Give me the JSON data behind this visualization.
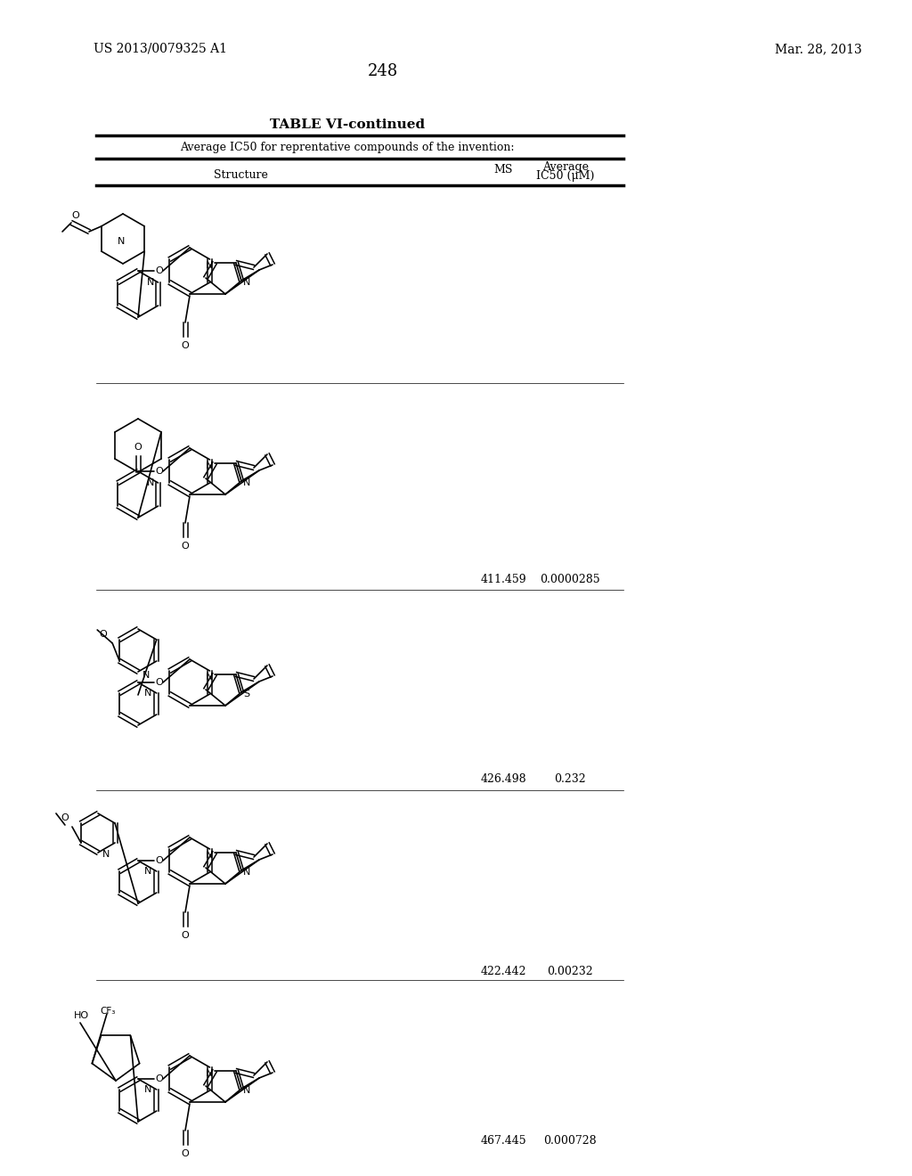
{
  "page_number": "248",
  "left_header": "US 2013/0079325 A1",
  "right_header": "Mar. 28, 2013",
  "table_title": "TABLE VI-continued",
  "table_subtitle": "Average IC50 for reprentative compounds of the invention:",
  "col_structure": "Structure",
  "col_ms": "MS",
  "col_ic50_line1": "Average",
  "col_ic50_line2": "IC50 (μM)",
  "rows": [
    {
      "ms": "",
      "ic50": ""
    },
    {
      "ms": "411.459",
      "ic50": "0.0000285"
    },
    {
      "ms": "426.498",
      "ic50": "0.232"
    },
    {
      "ms": "422.442",
      "ic50": "0.00232"
    },
    {
      "ms": "467.445",
      "ic50": "0.000728"
    }
  ],
  "bg_color": "#ffffff",
  "text_color": "#000000",
  "line_color": "#000000"
}
